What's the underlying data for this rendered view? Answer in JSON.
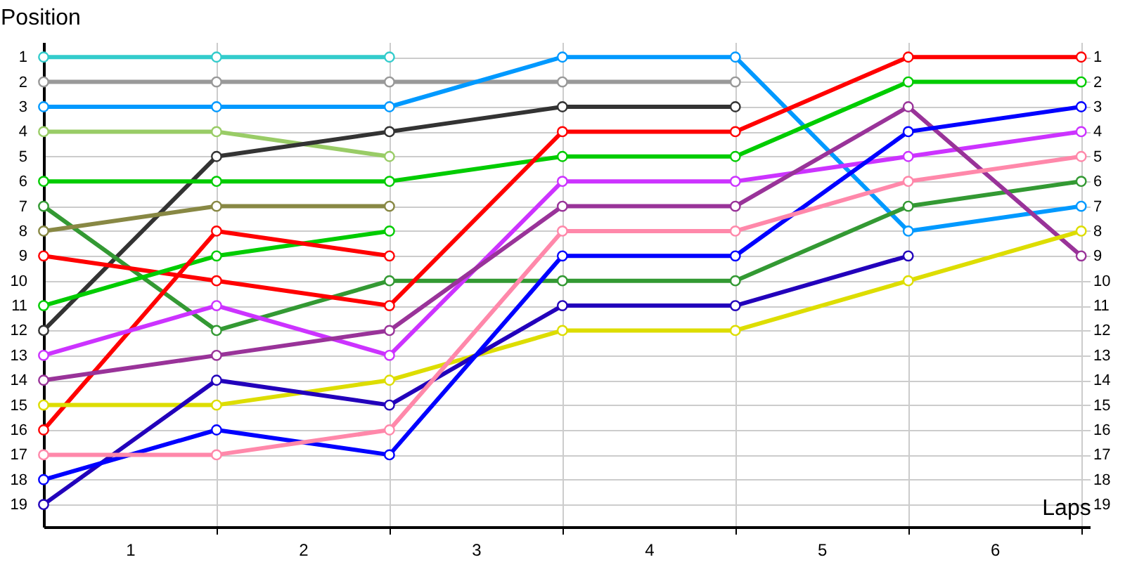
{
  "chart_data": {
    "type": "line",
    "xlabel": "Laps",
    "ylabel": "Position",
    "x": [
      0,
      1,
      2,
      3,
      4,
      5,
      6
    ],
    "xlim": [
      0,
      6.05
    ],
    "xticks": [
      {
        "value": 0.5,
        "label": "1"
      },
      {
        "value": 1,
        "label": null
      },
      {
        "value": 1.5,
        "label": "2"
      },
      {
        "value": 2,
        "label": null
      },
      {
        "value": 2.5,
        "label": "3"
      },
      {
        "value": 3,
        "label": null
      },
      {
        "value": 3.5,
        "label": "4"
      },
      {
        "value": 4,
        "label": null
      },
      {
        "value": 4.5,
        "label": "5"
      },
      {
        "value": 5,
        "label": null
      },
      {
        "value": 5.5,
        "label": "6"
      },
      {
        "value": 6,
        "label": null
      }
    ],
    "ylim": [
      19.9,
      0.4
    ],
    "yticks": [
      1,
      2,
      3,
      4,
      5,
      6,
      7,
      8,
      9,
      10,
      11,
      12,
      13,
      14,
      15,
      16,
      17,
      18,
      19
    ],
    "y2lim": [
      19.9,
      0.4
    ],
    "y2ticks": [
      1,
      2,
      3,
      4,
      5,
      6,
      7,
      8,
      9,
      10,
      11,
      12,
      13,
      14,
      15,
      16,
      17,
      18,
      19
    ],
    "grid": true,
    "marker": "circle",
    "line_style": "solid",
    "series": [
      {
        "color": "#33cccc",
        "values": [
          1,
          1,
          1,
          null,
          null,
          null,
          null
        ]
      },
      {
        "color": "#999999",
        "values": [
          2,
          2,
          2,
          2,
          2,
          null,
          null
        ]
      },
      {
        "color": "#0099ff",
        "values": [
          3,
          3,
          3,
          1,
          1,
          8,
          7
        ]
      },
      {
        "color": "#99cc66",
        "values": [
          4,
          4,
          5,
          null,
          null,
          null,
          null
        ]
      },
      {
        "color": "#333333",
        "values": [
          12,
          5,
          4,
          3,
          3,
          null,
          null
        ]
      },
      {
        "color": "#00cc00",
        "values": [
          6,
          6,
          6,
          5,
          5,
          2,
          2
        ]
      },
      {
        "color": "#339933",
        "values": [
          7,
          12,
          10,
          10,
          10,
          7,
          6
        ]
      },
      {
        "color": "#888844",
        "values": [
          8,
          7,
          7,
          null,
          null,
          null,
          null
        ]
      },
      {
        "color": "#ff0000",
        "values": [
          9,
          10,
          11,
          4,
          4,
          1,
          1
        ]
      },
      {
        "color": "#00cc00",
        "values": [
          11,
          9,
          8,
          null,
          null,
          null,
          null
        ]
      },
      {
        "color": "#ff0000",
        "values": [
          16,
          8,
          9,
          null,
          null,
          null,
          null
        ]
      },
      {
        "color": "#cc33ff",
        "values": [
          13,
          11,
          13,
          6,
          6,
          5,
          4
        ]
      },
      {
        "color": "#993399",
        "values": [
          14,
          13,
          12,
          7,
          7,
          3,
          9
        ]
      },
      {
        "color": "#dddd00",
        "values": [
          15,
          15,
          14,
          12,
          12,
          10,
          8
        ]
      },
      {
        "color": "#2200bb",
        "values": [
          19,
          14,
          15,
          11,
          11,
          9,
          null
        ]
      },
      {
        "color": "#0000ff",
        "values": [
          18,
          16,
          17,
          9,
          9,
          4,
          3
        ]
      },
      {
        "color": "#ff88aa",
        "values": [
          17,
          17,
          16,
          8,
          8,
          6,
          5
        ]
      }
    ]
  }
}
